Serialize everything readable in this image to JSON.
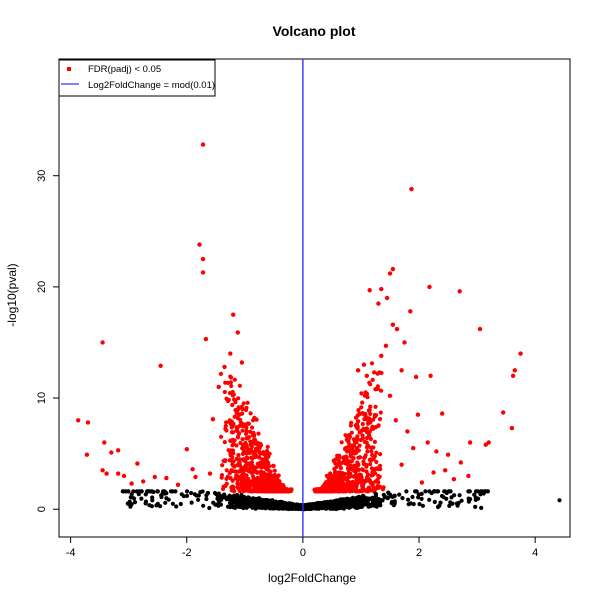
{
  "chart_data": {
    "type": "scatter",
    "title": "Volcano plot",
    "xlabel": "log2FoldChange",
    "ylabel": "-log10(pval)",
    "xlim": [
      -4.2,
      4.6
    ],
    "ylim": [
      -2.5,
      40.5
    ],
    "xticks": [
      -4,
      -2,
      0,
      2,
      4
    ],
    "yticks": [
      0,
      10,
      20,
      30
    ],
    "vline": {
      "x": 0,
      "color": "#3333ff",
      "label": "Log2FoldChange = mod(0.01)"
    },
    "legend": {
      "placement": "top-left",
      "entries": [
        {
          "label": "FDR(padj) < 0.05",
          "type": "point",
          "color": "#ff0000"
        },
        {
          "label": "Log2FoldChange = mod(0.01)",
          "type": "line",
          "color": "#3333ff"
        }
      ]
    },
    "colors": {
      "significant": "#ff0000",
      "nonsignificant": "#000000"
    },
    "significance_threshold_y": 1.6,
    "series": [
      {
        "name": "FDR(padj) < 0.05",
        "points": [
          [
            -1.72,
            32.8
          ],
          [
            -1.78,
            23.8
          ],
          [
            -1.72,
            22.5
          ],
          [
            -1.72,
            21.3
          ],
          [
            -1.2,
            17.5
          ],
          [
            -1.67,
            15.3
          ],
          [
            -1.12,
            15.9
          ],
          [
            -3.45,
            15.0
          ],
          [
            -2.45,
            12.9
          ],
          [
            -3.87,
            8.0
          ],
          [
            -3.7,
            7.8
          ],
          [
            -3.42,
            6.0
          ],
          [
            -3.3,
            5.1
          ],
          [
            -3.18,
            5.3
          ],
          [
            -3.72,
            4.9
          ],
          [
            -3.45,
            3.5
          ],
          [
            -3.38,
            3.2
          ],
          [
            -3.18,
            3.2
          ],
          [
            -3.08,
            3.0
          ],
          [
            -2.85,
            4.1
          ],
          [
            -2.55,
            2.9
          ],
          [
            -2.35,
            2.8
          ],
          [
            -2.0,
            5.4
          ],
          [
            -1.55,
            8.1
          ],
          [
            -1.45,
            11.0
          ],
          [
            -1.35,
            12.8
          ],
          [
            -1.25,
            14.0
          ],
          [
            -1.05,
            13.2
          ],
          [
            -1.6,
            3.2
          ],
          [
            -1.9,
            3.6
          ],
          [
            -2.15,
            2.2
          ],
          [
            -2.75,
            2.5
          ],
          [
            -2.95,
            2.3
          ],
          [
            -1.85,
            2.9
          ],
          [
            1.87,
            28.8
          ],
          [
            1.55,
            21.6
          ],
          [
            1.5,
            21.2
          ],
          [
            2.18,
            20.0
          ],
          [
            1.35,
            19.8
          ],
          [
            1.15,
            19.7
          ],
          [
            1.45,
            19.0
          ],
          [
            2.7,
            19.6
          ],
          [
            1.3,
            18.5
          ],
          [
            1.85,
            17.8
          ],
          [
            1.55,
            16.6
          ],
          [
            1.62,
            16.2
          ],
          [
            3.05,
            16.2
          ],
          [
            1.75,
            15.0
          ],
          [
            1.43,
            14.7
          ],
          [
            1.35,
            13.8
          ],
          [
            1.7,
            12.5
          ],
          [
            3.75,
            14.0
          ],
          [
            3.65,
            12.5
          ],
          [
            3.62,
            12.0
          ],
          [
            1.95,
            11.9
          ],
          [
            2.2,
            12.0
          ],
          [
            2.4,
            8.6
          ],
          [
            1.98,
            8.5
          ],
          [
            2.15,
            6.0
          ],
          [
            2.25,
            3.3
          ],
          [
            2.45,
            3.5
          ],
          [
            2.85,
            3.0
          ],
          [
            3.45,
            8.7
          ],
          [
            3.6,
            7.3
          ],
          [
            2.88,
            6.0
          ],
          [
            3.2,
            6.0
          ],
          [
            3.15,
            5.8
          ],
          [
            2.72,
            4.2
          ],
          [
            2.5,
            4.9
          ],
          [
            2.6,
            2.7
          ],
          [
            2.05,
            2.4
          ],
          [
            1.1,
            12.0
          ],
          [
            1.25,
            10.8
          ],
          [
            1.5,
            10.2
          ],
          [
            1.05,
            13.0
          ],
          [
            0.95,
            12.5
          ],
          [
            1.6,
            8.0
          ],
          [
            1.8,
            7.0
          ],
          [
            1.9,
            5.5
          ],
          [
            2.3,
            5.2
          ],
          [
            1.7,
            4.0
          ]
        ]
      }
    ]
  }
}
